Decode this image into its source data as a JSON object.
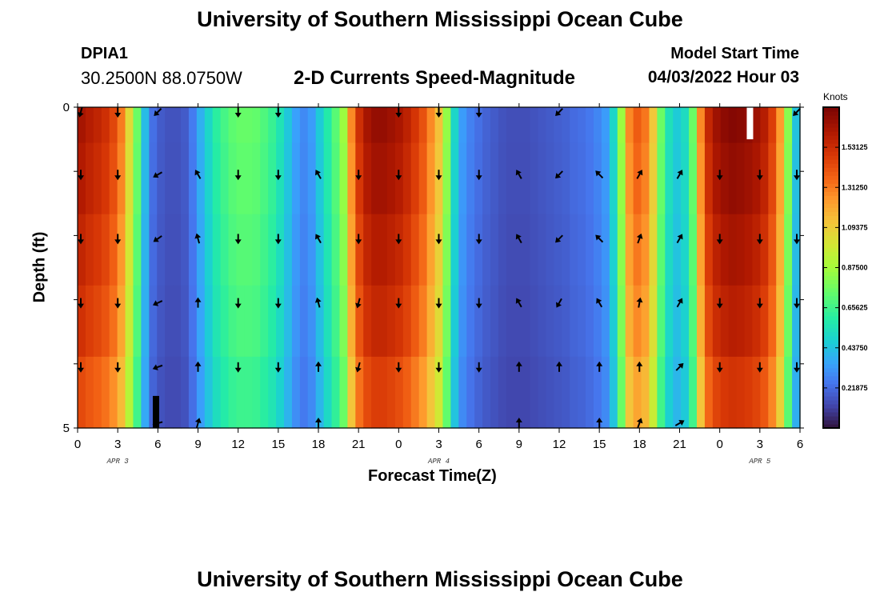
{
  "header": {
    "title": "University of Southern Mississippi Ocean Cube",
    "station": "DPIA1",
    "coordinates": "30.2500N  88.0750W",
    "chart_title": "2-D Currents Speed-Magnitude",
    "model_start_label": "Model Start Time",
    "model_start_value": "04/03/2022 Hour 03"
  },
  "footer": {
    "title": "University of Southern Mississippi Ocean Cube"
  },
  "chart_data": {
    "type": "heatmap",
    "title": "2-D Currents Speed-Magnitude",
    "xlabel": "Forecast Time(Z)",
    "ylabel": "Depth (ft)",
    "colorbar_units": "Knots",
    "colorbar_range": [
      0,
      1.75
    ],
    "colorbar_ticks": [
      "0.21875",
      "0.43750",
      "0.65625",
      "0.87500",
      "1.09375",
      "1.31250",
      "1.53125"
    ],
    "x_tick_labels": [
      "0",
      "3",
      "6",
      "9",
      "12",
      "15",
      "18",
      "21",
      "0",
      "3",
      "6",
      "9",
      "12",
      "15",
      "18",
      "21",
      "0",
      "3",
      "6"
    ],
    "date_labels": [
      {
        "text": "APR 3",
        "hour": 3
      },
      {
        "text": "APR 4",
        "hour": 27
      },
      {
        "text": "APR 5",
        "hour": 51
      }
    ],
    "y_tick_labels": [
      "0",
      "5"
    ],
    "x_range_hours": [
      0,
      54
    ],
    "depth_range_ft": [
      0,
      5
    ],
    "depth_layers": 5,
    "speed_knots_profile": [
      1.56,
      1.52,
      1.49,
      1.45,
      1.38,
      1.25,
      1.0,
      0.72,
      0.4,
      0.22,
      0.17,
      0.15,
      0.15,
      0.17,
      0.25,
      0.37,
      0.48,
      0.58,
      0.64,
      0.69,
      0.71,
      0.71,
      0.7,
      0.66,
      0.61,
      0.53,
      0.43,
      0.33,
      0.28,
      0.32,
      0.44,
      0.56,
      0.68,
      0.82,
      1.22,
      1.45,
      1.56,
      1.6,
      1.6,
      1.58,
      1.55,
      1.5,
      1.43,
      1.35,
      1.22,
      1.08,
      0.8,
      0.48,
      0.32,
      0.26,
      0.22,
      0.19,
      0.17,
      0.15,
      0.14,
      0.14,
      0.14,
      0.15,
      0.16,
      0.17,
      0.18,
      0.19,
      0.21,
      0.22,
      0.24,
      0.27,
      0.32,
      0.48,
      0.82,
      1.22,
      1.32,
      1.26,
      1.06,
      0.72,
      0.52,
      0.44,
      0.5,
      0.72,
      1.22,
      1.48,
      1.58,
      1.62,
      1.64,
      1.63,
      1.61,
      1.58,
      1.52,
      1.4,
      1.18,
      0.78,
      0.42
    ],
    "depth_speed_factor": [
      1.05,
      1.03,
      1.0,
      0.97,
      0.92,
      0.85
    ],
    "arrow_hours": [
      0,
      3,
      6,
      9,
      12,
      15,
      18,
      21,
      24,
      27,
      30,
      33,
      36,
      39,
      42,
      45,
      48,
      51,
      54
    ],
    "arrow_depth_rows": [
      0,
      1,
      2,
      3,
      4,
      5
    ],
    "arrow_directions_deg": [
      [
        195,
        180,
        225,
        -1,
        180,
        180,
        -1,
        -1,
        180,
        180,
        180,
        -1,
        225,
        -1,
        -1,
        -1,
        -1,
        -1,
        225
      ],
      [
        180,
        180,
        240,
        330,
        180,
        180,
        330,
        180,
        180,
        180,
        180,
        330,
        225,
        315,
        30,
        30,
        180,
        180,
        180
      ],
      [
        180,
        180,
        235,
        345,
        180,
        180,
        330,
        180,
        180,
        180,
        180,
        330,
        225,
        315,
        20,
        30,
        180,
        180,
        180
      ],
      [
        180,
        180,
        245,
        0,
        180,
        180,
        345,
        195,
        180,
        180,
        180,
        330,
        210,
        330,
        10,
        30,
        180,
        180,
        180
      ],
      [
        180,
        180,
        250,
        0,
        180,
        180,
        0,
        195,
        180,
        180,
        180,
        0,
        0,
        0,
        0,
        45,
        180,
        180,
        180
      ],
      [
        -1,
        -1,
        255,
        15,
        -1,
        -1,
        0,
        -1,
        -1,
        -1,
        -1,
        0,
        -1,
        0,
        20,
        60,
        -1,
        -1,
        -1
      ]
    ],
    "data_gap_markers": [
      {
        "hour": 5.8,
        "depth_from": 4.5,
        "depth_to": 5.0,
        "color": "#000000"
      },
      {
        "hour": 50.2,
        "depth_from": 0.0,
        "depth_to": 0.5,
        "color": "#ffffff"
      }
    ]
  }
}
